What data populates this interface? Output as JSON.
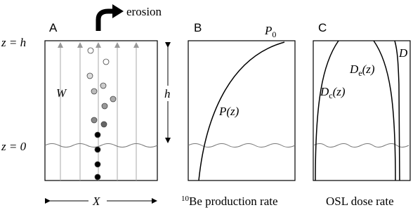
{
  "erosion": "erosion",
  "levels": {
    "top": "z = h",
    "bottom": "z = 0"
  },
  "panels": {
    "a": {
      "letter": "A",
      "width_label": "W",
      "height_label": "h",
      "x_label": "X"
    },
    "b": {
      "letter": "B",
      "surface_label": {
        "main": "P",
        "sub": "0"
      },
      "curve_label": "P(z)",
      "caption": {
        "sup": "10",
        "main": "Be production rate"
      }
    },
    "c": {
      "letter": "C",
      "external_label": {
        "main": "D",
        "sub": "e",
        "tail": "(z)"
      },
      "cosmic_label": {
        "main": "D",
        "sub": "c",
        "tail": "(z)"
      },
      "total_label": "D",
      "caption": "OSL dose rate"
    }
  }
}
